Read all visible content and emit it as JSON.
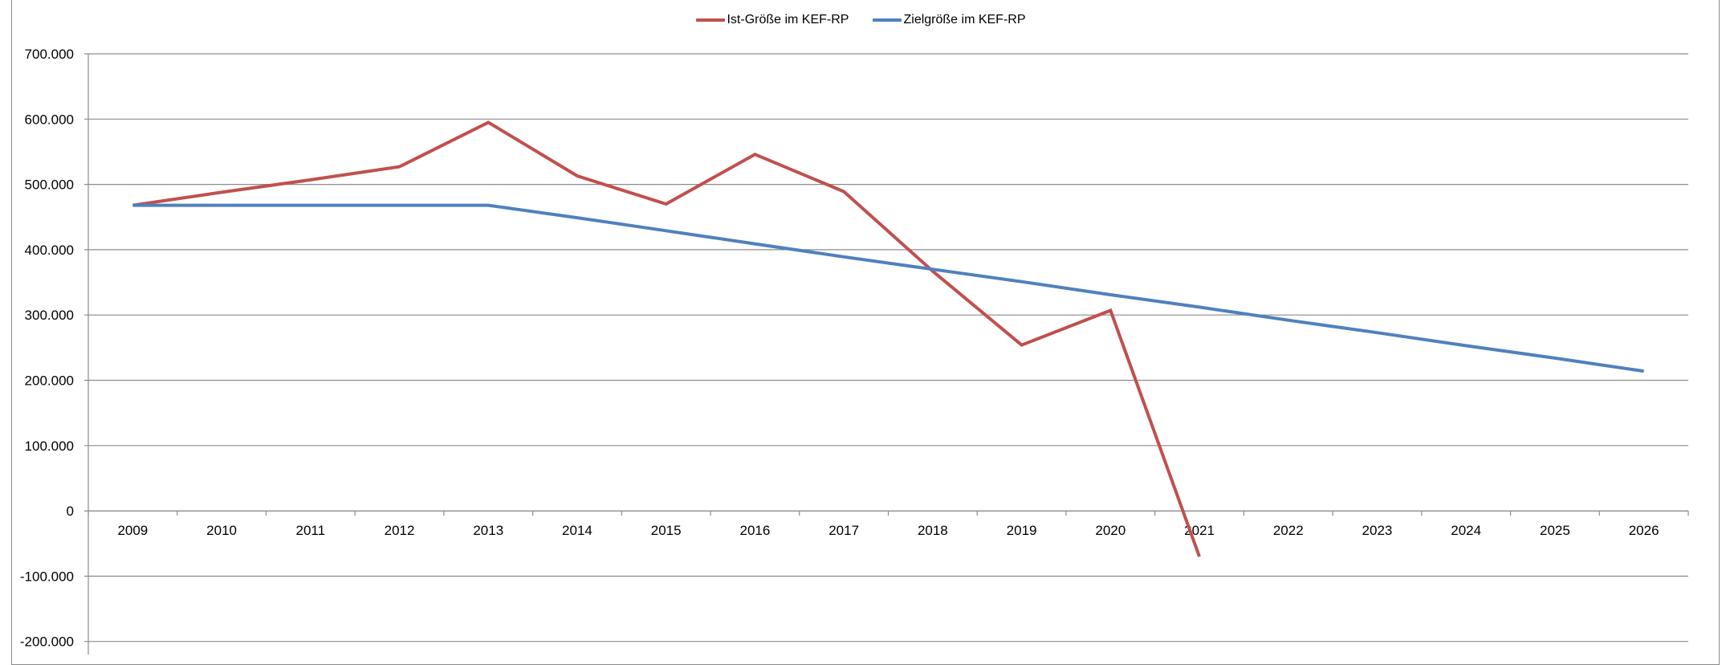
{
  "chart_data": {
    "type": "line",
    "title": "",
    "xlabel": "",
    "ylabel": "",
    "categories": [
      "2009",
      "2010",
      "2011",
      "2012",
      "2013",
      "2014",
      "2015",
      "2016",
      "2017",
      "2018",
      "2019",
      "2020",
      "2021",
      "2022",
      "2023",
      "2024",
      "2025",
      "2026"
    ],
    "y_ticks": [
      700000,
      600000,
      500000,
      400000,
      300000,
      200000,
      100000,
      0,
      -100000,
      -200000
    ],
    "y_tick_labels": [
      "700.000",
      "600.000",
      "500.000",
      "400.000",
      "300.000",
      "200.000",
      "100.000",
      "0",
      "-100.000",
      "-200.000"
    ],
    "ylim": [
      -200000,
      700000
    ],
    "grid": true,
    "legend_position": "top-center",
    "series": [
      {
        "name": "Ist-Größe im KEF-RP",
        "color": "#C0504D",
        "values": [
          468000,
          488000,
          507000,
          527000,
          595000,
          513000,
          470000,
          546000,
          489000,
          367000,
          254000,
          307000,
          -70000,
          null,
          null,
          null,
          null,
          null
        ]
      },
      {
        "name": "Zielgröße im KEF-RP",
        "color": "#4F81BD",
        "values": [
          468000,
          468000,
          468000,
          468000,
          468000,
          449000,
          429000,
          409000,
          389000,
          370000,
          351000,
          331000,
          312000,
          292000,
          273000,
          253000,
          234000,
          214000
        ]
      }
    ]
  }
}
